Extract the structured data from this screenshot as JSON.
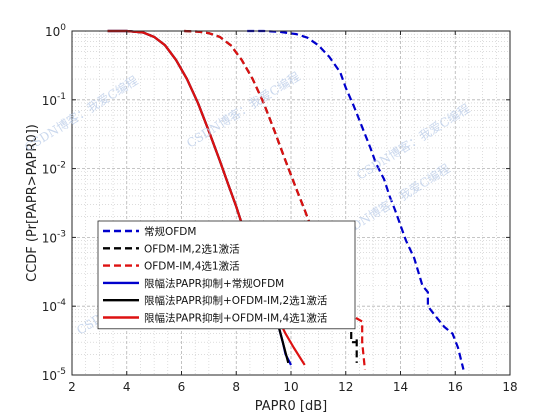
{
  "chart_data": {
    "type": "line",
    "title": "",
    "xlabel": "PAPR0 [dB]",
    "ylabel": "CCDF (Pr[PAPR>PAPR0])",
    "xlim": [
      2,
      18
    ],
    "ylim": [
      1e-05,
      1
    ],
    "yscale": "log",
    "grid": true,
    "minor_grid": true,
    "legend_position": "lower-left",
    "x_ticks": [
      "2",
      "4",
      "6",
      "8",
      "10",
      "12",
      "14",
      "16",
      "18"
    ],
    "y_ticks": [
      {
        "base": "10",
        "exp": "0"
      },
      {
        "base": "10",
        "exp": "-1"
      },
      {
        "base": "10",
        "exp": "-2"
      },
      {
        "base": "10",
        "exp": "-3"
      },
      {
        "base": "10",
        "exp": "-4"
      },
      {
        "base": "10",
        "exp": "-5"
      }
    ],
    "series": [
      {
        "name": "常规OFDM",
        "color": "#0000cc",
        "style": "dashed",
        "x": [
          8.4,
          9.0,
          9.6,
          10.2,
          10.6,
          11.0,
          11.4,
          11.8,
          12.0,
          12.3,
          12.6,
          12.9,
          13.1,
          13.4,
          13.6,
          13.8,
          14.0,
          14.2,
          14.5,
          14.8,
          15.0,
          15.0,
          15.3,
          15.6,
          15.9,
          16.1,
          16.3
        ],
        "y": [
          1.0,
          1.0,
          0.97,
          0.9,
          0.8,
          0.62,
          0.42,
          0.25,
          0.15,
          0.08,
          0.04,
          0.02,
          0.012,
          0.007,
          0.004,
          0.0025,
          0.0015,
          0.0009,
          0.0005,
          0.0002,
          0.00016,
          0.0001,
          7e-05,
          5e-05,
          4e-05,
          2.5e-05,
          1.2e-05
        ]
      },
      {
        "name": "OFDM-IM,2选1激活",
        "color": "#000000",
        "style": "dashed",
        "x": [
          6.1,
          6.6,
          7.0,
          7.4,
          7.8,
          8.2,
          8.6,
          9.0,
          9.4,
          9.8,
          10.2,
          10.5,
          10.8,
          11.0,
          11.2,
          11.4,
          11.6,
          11.8,
          12.0,
          12.2,
          12.2,
          12.4,
          12.4,
          12.4
        ],
        "y": [
          1.0,
          0.98,
          0.93,
          0.82,
          0.62,
          0.38,
          0.2,
          0.09,
          0.035,
          0.013,
          0.005,
          0.0025,
          0.0012,
          0.0008,
          0.0005,
          0.0003,
          0.0002,
          0.00013,
          0.0001,
          6e-05,
          3e-05,
          3e-05,
          3.5e-05,
          1.5e-05
        ]
      },
      {
        "name": "OFDM-IM,4选1激活",
        "color": "#dd1111",
        "style": "dashed",
        "x": [
          6.1,
          6.6,
          7.0,
          7.4,
          7.8,
          8.2,
          8.6,
          9.0,
          9.4,
          9.8,
          10.2,
          10.5,
          10.8,
          11.0,
          11.2,
          11.4,
          11.6,
          11.8,
          12.0,
          12.3,
          12.6,
          12.6,
          12.7
        ],
        "y": [
          1.0,
          0.98,
          0.93,
          0.82,
          0.62,
          0.38,
          0.2,
          0.09,
          0.035,
          0.013,
          0.005,
          0.0025,
          0.0012,
          0.0008,
          0.0005,
          0.0003,
          0.0002,
          0.00013,
          0.0001,
          7e-05,
          6e-05,
          3e-05,
          1.2e-05
        ]
      },
      {
        "name": "限幅法PAPR抑制+常规OFDM",
        "color": "#0000cc",
        "style": "solid",
        "x": [
          3.3,
          4.0,
          4.6,
          5.0,
          5.4,
          5.8,
          6.2,
          6.6,
          7.0,
          7.4,
          7.7,
          8.0,
          8.3,
          8.6,
          8.9,
          9.2,
          9.5,
          9.7,
          9.8,
          10.0
        ],
        "y": [
          1.0,
          1.0,
          0.95,
          0.82,
          0.62,
          0.38,
          0.2,
          0.09,
          0.035,
          0.013,
          0.006,
          0.0028,
          0.0012,
          0.0005,
          0.00025,
          0.00012,
          6e-05,
          3e-05,
          2e-05,
          1.4e-05
        ]
      },
      {
        "name": "限幅法PAPR抑制+OFDM-IM,2选1激活",
        "color": "#000000",
        "style": "solid",
        "x": [
          3.3,
          4.0,
          4.6,
          5.0,
          5.4,
          5.8,
          6.2,
          6.6,
          7.0,
          7.4,
          7.7,
          8.0,
          8.3,
          8.6,
          8.9,
          9.2,
          9.5,
          9.7,
          9.9
        ],
        "y": [
          1.0,
          1.0,
          0.95,
          0.82,
          0.62,
          0.38,
          0.2,
          0.09,
          0.035,
          0.013,
          0.006,
          0.0028,
          0.0012,
          0.0005,
          0.00025,
          0.00012,
          6e-05,
          3e-05,
          1.5e-05
        ]
      },
      {
        "name": "限幅法PAPR抑制+OFDM-IM,4选1激活",
        "color": "#dd1111",
        "style": "solid",
        "x": [
          3.3,
          4.0,
          4.6,
          5.0,
          5.4,
          5.8,
          6.2,
          6.6,
          7.0,
          7.4,
          7.7,
          8.0,
          8.3,
          8.6,
          8.9,
          9.2,
          9.5,
          9.8,
          10.1,
          10.5
        ],
        "y": [
          1.0,
          1.0,
          0.95,
          0.82,
          0.62,
          0.38,
          0.2,
          0.09,
          0.035,
          0.013,
          0.006,
          0.0028,
          0.0012,
          0.0005,
          0.00025,
          0.00013,
          7e-05,
          4e-05,
          2.5e-05,
          1.4e-05
        ]
      }
    ]
  },
  "watermark": [
    "CSDN博客：我爱C编程",
    "CSDN博客：我爱C编程",
    "CSDN博客：我爱C编程",
    "CSDN博客：我爱C编程",
    "CSDN博客：我爱C编程",
    "CSDN博客：我爱C编程"
  ]
}
